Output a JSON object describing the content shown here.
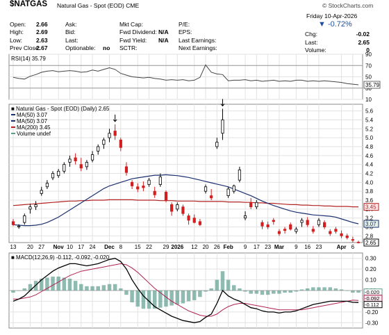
{
  "header": {
    "symbol": "$NATGAS",
    "description": "Natural Gas - Spot (EOD)",
    "exchange": "CME",
    "brand": "© StockCharts.com",
    "date": "Friday  10-Apr-2026",
    "change_pct": "▼ -0.72%"
  },
  "quote": {
    "col1": [
      {
        "label": "Open:",
        "value": "2.66"
      },
      {
        "label": "High:",
        "value": "2.69"
      },
      {
        "label": "Low:",
        "value": "2.63"
      },
      {
        "label": "Prev Close:",
        "value": "2.67"
      }
    ],
    "col2": [
      {
        "label": "Ask:",
        "value": ""
      },
      {
        "label": "Bid:",
        "value": ""
      },
      {
        "label": "Last:",
        "value": ""
      },
      {
        "label": "Optionable:",
        "value": "no"
      }
    ],
    "col3": [
      {
        "label": "Mkt Cap:",
        "value": ""
      },
      {
        "label": "Fwd Dividend:",
        "value": "N/A"
      },
      {
        "label": "Fwd Yield:",
        "value": "N/A"
      },
      {
        "label": "SCTR:",
        "value": ""
      }
    ],
    "col4": [
      {
        "label": "P/E:",
        "value": ""
      },
      {
        "label": "EPS:",
        "value": ""
      },
      {
        "label": "Last Earnings:",
        "value": ""
      },
      {
        "label": "Next Earnings:",
        "value": ""
      }
    ],
    "col5": [
      {
        "label": "Chg:",
        "value": "-0.02"
      },
      {
        "label": "Last:",
        "value": "2.65"
      },
      {
        "label": "Volume:",
        "value": "0"
      }
    ]
  },
  "colors": {
    "up": "#000000",
    "down": "#d21e1e",
    "ma50": "#1a2f6e",
    "ma200": "#b22222",
    "rsi": "#444444",
    "macd": "#000000",
    "signal": "#b02050",
    "hist": "#5f9e8f"
  },
  "chart_data": [
    {
      "type": "line",
      "title": "RSI(14) 35.79",
      "ylim": [
        10,
        90
      ],
      "yticks": [
        90,
        70,
        50,
        30,
        10
      ],
      "reference_lines": [
        70,
        30
      ],
      "last_value_label": "35.79",
      "x": [
        "2025-10-13",
        "2025-10-15",
        "2025-10-17",
        "2025-10-21",
        "2025-10-23",
        "2025-10-27",
        "2025-10-29",
        "2025-10-31",
        "2025-11-04",
        "2025-11-06",
        "2025-11-10",
        "2025-11-12",
        "2025-11-14",
        "2025-11-18",
        "2025-11-20",
        "2025-11-24",
        "2025-11-26",
        "2025-12-01",
        "2025-12-03",
        "2025-12-05",
        "2025-12-08",
        "2025-12-10",
        "2025-12-12",
        "2025-12-16",
        "2025-12-18",
        "2025-12-22",
        "2025-12-24",
        "2025-12-29",
        "2025-12-31",
        "2026-01-05",
        "2026-01-07",
        "2026-01-09",
        "2026-01-13",
        "2026-01-15",
        "2026-01-20",
        "2026-01-22",
        "2026-01-26",
        "2026-01-28",
        "2026-02-02",
        "2026-02-04",
        "2026-02-06",
        "2026-02-10",
        "2026-02-12",
        "2026-02-17",
        "2026-02-19",
        "2026-02-23",
        "2026-02-25",
        "2026-03-02",
        "2026-03-04",
        "2026-03-06",
        "2026-03-10",
        "2026-03-12",
        "2026-03-16",
        "2026-03-18",
        "2026-03-20",
        "2026-03-24",
        "2026-03-26",
        "2026-03-30",
        "2026-04-01",
        "2026-04-03",
        "2026-04-07",
        "2026-04-10"
      ],
      "values": [
        49,
        47,
        46,
        51,
        54,
        58,
        60,
        61,
        59,
        60,
        61,
        60,
        58,
        59,
        62,
        60,
        63,
        66,
        63,
        56,
        53,
        50,
        49,
        48,
        49,
        47,
        46,
        44,
        45,
        44,
        45,
        43,
        44,
        49,
        71,
        58,
        55,
        54,
        43,
        44,
        44,
        45,
        43,
        44,
        42,
        43,
        44,
        42,
        43,
        42,
        44,
        44,
        42,
        43,
        42,
        43,
        42,
        41,
        40,
        38,
        37,
        35.79
      ]
    },
    {
      "type": "line",
      "title": "Natural Gas - Spot (EOD) (Daily) 2.65",
      "ylim": [
        2.65,
        5.75
      ],
      "yticks": [
        5.6,
        5.4,
        5.2,
        5.0,
        4.8,
        4.6,
        4.4,
        4.2,
        4.0,
        3.8,
        3.6,
        3.4,
        3.2,
        3.0,
        2.8
      ],
      "series": [
        {
          "name": "MA(50) 3.07"
        },
        {
          "name": "MA(50) 3.07"
        },
        {
          "name": "MA(200) 3.45"
        },
        {
          "name": "Volume undef"
        }
      ],
      "x_ticks": [
        "13",
        "20",
        "27",
        "Nov",
        "10",
        "17",
        "24",
        "Dec",
        "8",
        "15",
        "22",
        "29",
        "2026",
        "12",
        "20",
        "26",
        "Feb",
        "9",
        "17",
        "23",
        "Mar",
        "9",
        "16",
        "23",
        "Apr",
        "6"
      ],
      "last_price_label": "2.65",
      "ma200_label": "3.45",
      "ma50_label": "3.07",
      "annotations": [
        "arrow above 5.25 high near Dec 4",
        "arrow above 5.65 high near Jan 28"
      ],
      "x": [
        "2025-10-13",
        "2025-10-15",
        "2025-10-17",
        "2025-10-21",
        "2025-10-23",
        "2025-10-27",
        "2025-10-29",
        "2025-10-31",
        "2025-11-04",
        "2025-11-06",
        "2025-11-10",
        "2025-11-12",
        "2025-11-14",
        "2025-11-18",
        "2025-11-20",
        "2025-11-24",
        "2025-11-26",
        "2025-12-01",
        "2025-12-03",
        "2025-12-05",
        "2025-12-08",
        "2025-12-10",
        "2025-12-12",
        "2025-12-16",
        "2025-12-18",
        "2025-12-22",
        "2025-12-24",
        "2025-12-29",
        "2025-12-31",
        "2026-01-05",
        "2026-01-07",
        "2026-01-09",
        "2026-01-13",
        "2026-01-15",
        "2026-01-20",
        "2026-01-22",
        "2026-01-26",
        "2026-01-28",
        "2026-02-02",
        "2026-02-04",
        "2026-02-06",
        "2026-02-10",
        "2026-02-12",
        "2026-02-17",
        "2026-02-19",
        "2026-02-23",
        "2026-02-25",
        "2026-03-02",
        "2026-03-04",
        "2026-03-06",
        "2026-03-10",
        "2026-03-12",
        "2026-03-16",
        "2026-03-18",
        "2026-03-20",
        "2026-03-24",
        "2026-03-26",
        "2026-03-30",
        "2026-04-01",
        "2026-04-03",
        "2026-04-07",
        "2026-04-10"
      ],
      "ohlc": [
        [
          3.12,
          3.18,
          3.02,
          3.05
        ],
        [
          3.0,
          3.06,
          2.96,
          3.02
        ],
        [
          3.1,
          3.3,
          3.05,
          3.25
        ],
        [
          3.4,
          3.52,
          3.3,
          3.45
        ],
        [
          3.45,
          3.58,
          3.38,
          3.5
        ],
        [
          3.75,
          3.9,
          3.7,
          3.82
        ],
        [
          3.9,
          4.05,
          3.85,
          3.98
        ],
        [
          4.1,
          4.25,
          4.05,
          4.2
        ],
        [
          4.15,
          4.3,
          4.1,
          4.25
        ],
        [
          4.25,
          4.45,
          4.2,
          4.4
        ],
        [
          4.45,
          4.6,
          4.35,
          4.52
        ],
        [
          4.55,
          4.65,
          4.4,
          4.48
        ],
        [
          4.4,
          4.55,
          4.25,
          4.32
        ],
        [
          4.35,
          4.5,
          4.28,
          4.45
        ],
        [
          4.5,
          4.7,
          4.45,
          4.62
        ],
        [
          4.7,
          4.85,
          4.62,
          4.8
        ],
        [
          4.85,
          5.0,
          4.75,
          4.95
        ],
        [
          5.0,
          5.2,
          4.9,
          5.1
        ],
        [
          5.15,
          5.3,
          4.95,
          5.05
        ],
        [
          4.95,
          5.0,
          4.7,
          4.78
        ],
        [
          4.35,
          4.45,
          4.15,
          4.22
        ],
        [
          4.0,
          4.05,
          3.85,
          3.92
        ],
        [
          3.9,
          3.98,
          3.78,
          3.85
        ],
        [
          3.92,
          4.02,
          3.8,
          3.88
        ],
        [
          3.95,
          4.1,
          3.9,
          4.05
        ],
        [
          3.8,
          3.9,
          3.65,
          3.72
        ],
        [
          3.95,
          4.2,
          3.9,
          4.12
        ],
        [
          3.78,
          3.82,
          3.55,
          3.6
        ],
        [
          3.5,
          3.55,
          3.25,
          3.35
        ],
        [
          3.4,
          3.55,
          3.35,
          3.5
        ],
        [
          3.45,
          3.5,
          3.25,
          3.3
        ],
        [
          3.25,
          3.3,
          3.05,
          3.15
        ],
        [
          3.2,
          3.28,
          3.08,
          3.1
        ],
        [
          3.12,
          3.18,
          3.02,
          3.05
        ],
        [
          3.8,
          3.95,
          3.75,
          3.9
        ],
        [
          3.7,
          3.85,
          3.6,
          3.65
        ],
        [
          4.8,
          5.0,
          4.75,
          4.9
        ],
        [
          5.1,
          5.65,
          4.95,
          5.4
        ],
        [
          3.7,
          3.9,
          3.65,
          3.85
        ],
        [
          3.8,
          3.95,
          3.75,
          3.92
        ],
        [
          4.05,
          4.35,
          4.0,
          4.28
        ],
        [
          3.2,
          3.35,
          3.15,
          3.25
        ],
        [
          3.55,
          3.65,
          3.4,
          3.45
        ],
        [
          3.45,
          3.6,
          3.4,
          3.55
        ],
        [
          3.1,
          3.15,
          2.95,
          3.02
        ],
        [
          3.05,
          3.12,
          2.95,
          3.0
        ],
        [
          3.15,
          3.2,
          3.05,
          3.12
        ],
        [
          2.9,
          2.95,
          2.8,
          2.85
        ],
        [
          2.95,
          3.0,
          2.85,
          2.92
        ],
        [
          3.05,
          3.1,
          2.92,
          2.95
        ],
        [
          2.9,
          3.0,
          2.85,
          2.95
        ],
        [
          3.1,
          3.2,
          3.0,
          3.15
        ],
        [
          3.15,
          3.22,
          3.0,
          3.05
        ],
        [
          2.95,
          3.02,
          2.85,
          2.9
        ],
        [
          3.05,
          3.2,
          3.0,
          3.15
        ],
        [
          3.1,
          3.15,
          2.95,
          3.0
        ],
        [
          2.9,
          2.95,
          2.8,
          2.85
        ],
        [
          2.95,
          3.0,
          2.85,
          2.9
        ],
        [
          2.85,
          2.92,
          2.75,
          2.8
        ],
        [
          2.8,
          2.85,
          2.72,
          2.76
        ],
        [
          2.72,
          2.78,
          2.65,
          2.7
        ],
        [
          2.66,
          2.69,
          2.63,
          2.65
        ]
      ],
      "ma50": [
        3.05,
        3.04,
        3.03,
        3.03,
        3.04,
        3.06,
        3.1,
        3.16,
        3.22,
        3.3,
        3.38,
        3.46,
        3.54,
        3.62,
        3.7,
        3.78,
        3.86,
        3.92,
        3.96,
        4.0,
        4.04,
        4.08,
        4.1,
        4.12,
        4.14,
        4.16,
        4.16,
        4.17,
        4.16,
        4.15,
        4.13,
        4.11,
        4.08,
        4.05,
        4.02,
        3.99,
        3.96,
        3.93,
        3.9,
        3.85,
        3.8,
        3.75,
        3.7,
        3.64,
        3.58,
        3.53,
        3.48,
        3.44,
        3.4,
        3.36,
        3.33,
        3.31,
        3.29,
        3.27,
        3.26,
        3.25,
        3.24,
        3.22,
        3.18,
        3.14,
        3.1,
        3.07
      ],
      "ma200": [
        3.48,
        3.49,
        3.5,
        3.51,
        3.52,
        3.53,
        3.54,
        3.55,
        3.56,
        3.57,
        3.58,
        3.58,
        3.59,
        3.59,
        3.6,
        3.6,
        3.6,
        3.61,
        3.61,
        3.61,
        3.61,
        3.61,
        3.6,
        3.6,
        3.6,
        3.6,
        3.59,
        3.59,
        3.59,
        3.58,
        3.58,
        3.58,
        3.58,
        3.57,
        3.57,
        3.57,
        3.57,
        3.57,
        3.56,
        3.56,
        3.56,
        3.55,
        3.55,
        3.54,
        3.54,
        3.53,
        3.53,
        3.52,
        3.51,
        3.5,
        3.5,
        3.49,
        3.49,
        3.48,
        3.48,
        3.47,
        3.47,
        3.46,
        3.46,
        3.46,
        3.45,
        3.45
      ]
    },
    {
      "type": "line",
      "title": "MACD(12,26,9) -0.112, -0.092, -0.020",
      "ylim": [
        -0.35,
        0.35
      ],
      "yticks": [
        0.3,
        0.2,
        0.1,
        0.0,
        -0.1,
        -0.2,
        -0.3
      ],
      "last_value_labels": [
        "-0.020",
        "-0.092",
        "-0.112"
      ],
      "x": [
        "2025-10-13",
        "2025-10-15",
        "2025-10-17",
        "2025-10-21",
        "2025-10-23",
        "2025-10-27",
        "2025-10-29",
        "2025-10-31",
        "2025-11-04",
        "2025-11-06",
        "2025-11-10",
        "2025-11-12",
        "2025-11-14",
        "2025-11-18",
        "2025-11-20",
        "2025-11-24",
        "2025-11-26",
        "2025-12-01",
        "2025-12-03",
        "2025-12-05",
        "2025-12-08",
        "2025-12-10",
        "2025-12-12",
        "2025-12-16",
        "2025-12-18",
        "2025-12-22",
        "2025-12-24",
        "2025-12-29",
        "2025-12-31",
        "2026-01-05",
        "2026-01-07",
        "2026-01-09",
        "2026-01-13",
        "2026-01-15",
        "2026-01-20",
        "2026-01-22",
        "2026-01-26",
        "2026-01-28",
        "2026-02-02",
        "2026-02-04",
        "2026-02-06",
        "2026-02-10",
        "2026-02-12",
        "2026-02-17",
        "2026-02-19",
        "2026-02-23",
        "2026-02-25",
        "2026-03-02",
        "2026-03-04",
        "2026-03-06",
        "2026-03-10",
        "2026-03-12",
        "2026-03-16",
        "2026-03-18",
        "2026-03-20",
        "2026-03-24",
        "2026-03-26",
        "2026-03-30",
        "2026-04-01",
        "2026-04-03",
        "2026-04-07",
        "2026-04-10"
      ],
      "macd": [
        -0.1,
        -0.08,
        -0.05,
        0.0,
        0.05,
        0.1,
        0.14,
        0.18,
        0.21,
        0.23,
        0.25,
        0.25,
        0.24,
        0.23,
        0.24,
        0.25,
        0.27,
        0.29,
        0.3,
        0.27,
        0.2,
        0.1,
        0.02,
        -0.05,
        -0.1,
        -0.15,
        -0.18,
        -0.21,
        -0.24,
        -0.26,
        -0.28,
        -0.29,
        -0.3,
        -0.29,
        -0.25,
        -0.22,
        -0.12,
        0.0,
        -0.05,
        -0.08,
        -0.1,
        -0.13,
        -0.16,
        -0.17,
        -0.19,
        -0.2,
        -0.2,
        -0.21,
        -0.2,
        -0.2,
        -0.19,
        -0.17,
        -0.15,
        -0.13,
        -0.12,
        -0.11,
        -0.1,
        -0.1,
        -0.1,
        -0.1,
        -0.11,
        -0.112
      ],
      "signal": [
        -0.08,
        -0.08,
        -0.07,
        -0.06,
        -0.04,
        -0.01,
        0.02,
        0.05,
        0.08,
        0.11,
        0.14,
        0.16,
        0.18,
        0.19,
        0.2,
        0.21,
        0.22,
        0.23,
        0.24,
        0.25,
        0.24,
        0.21,
        0.17,
        0.12,
        0.07,
        0.02,
        -0.02,
        -0.06,
        -0.1,
        -0.13,
        -0.16,
        -0.19,
        -0.21,
        -0.23,
        -0.24,
        -0.24,
        -0.22,
        -0.18,
        -0.15,
        -0.13,
        -0.12,
        -0.12,
        -0.13,
        -0.14,
        -0.15,
        -0.16,
        -0.17,
        -0.18,
        -0.18,
        -0.18,
        -0.18,
        -0.18,
        -0.17,
        -0.16,
        -0.15,
        -0.14,
        -0.13,
        -0.12,
        -0.11,
        -0.1,
        -0.09,
        -0.092
      ]
    }
  ]
}
